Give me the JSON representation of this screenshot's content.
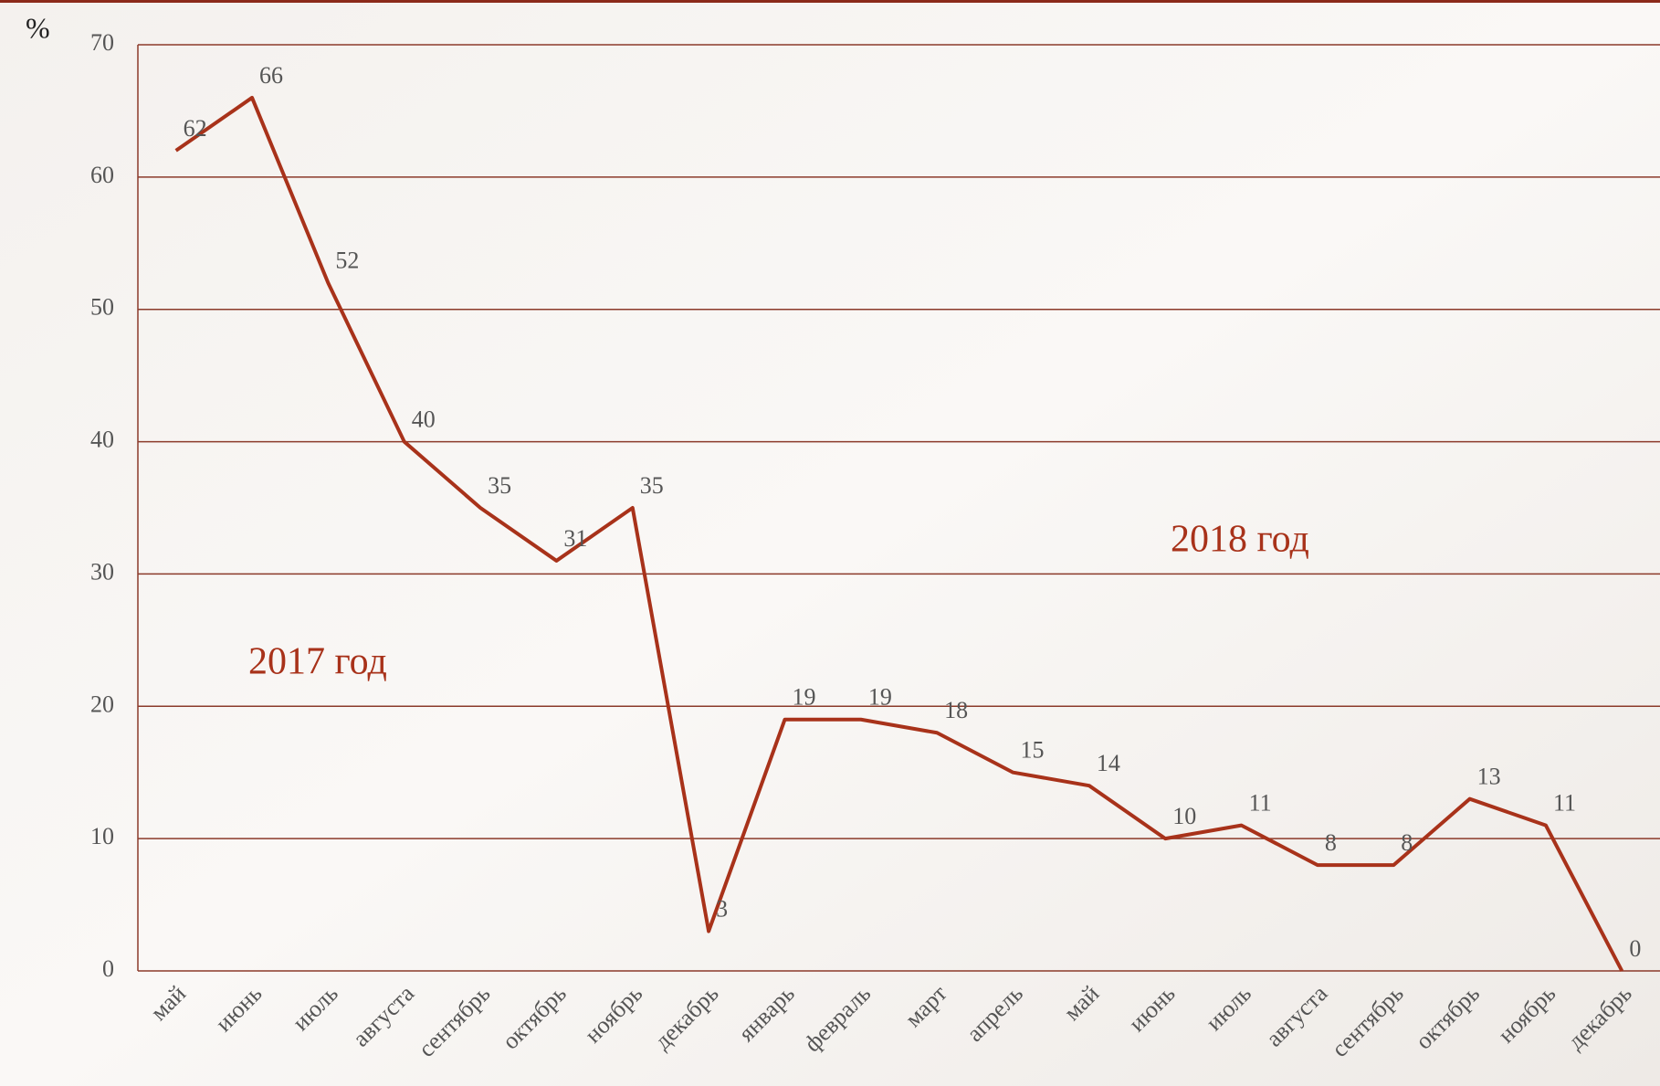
{
  "chart_data": {
    "type": "line",
    "y_label": "%",
    "categories": [
      "май",
      "июнь",
      "июль",
      "августа",
      "сентябрь",
      "октябрь",
      "ноябрь",
      "декабрь",
      "январь",
      "февраль",
      "март",
      "апрель",
      "май",
      "июнь",
      "июль",
      "августа",
      "сентябрь",
      "октябрь",
      "ноябрь",
      "декабрь"
    ],
    "values": [
      62,
      66,
      52,
      40,
      35,
      31,
      35,
      3,
      19,
      19,
      18,
      15,
      14,
      10,
      11,
      8,
      8,
      13,
      11,
      0
    ],
    "color": "#a8321a",
    "ylim": [
      0,
      70
    ],
    "yticks": [
      0,
      10,
      20,
      30,
      40,
      50,
      60,
      70
    ],
    "grid": true,
    "annotations": [
      "2017 год",
      "2018 год"
    ]
  }
}
